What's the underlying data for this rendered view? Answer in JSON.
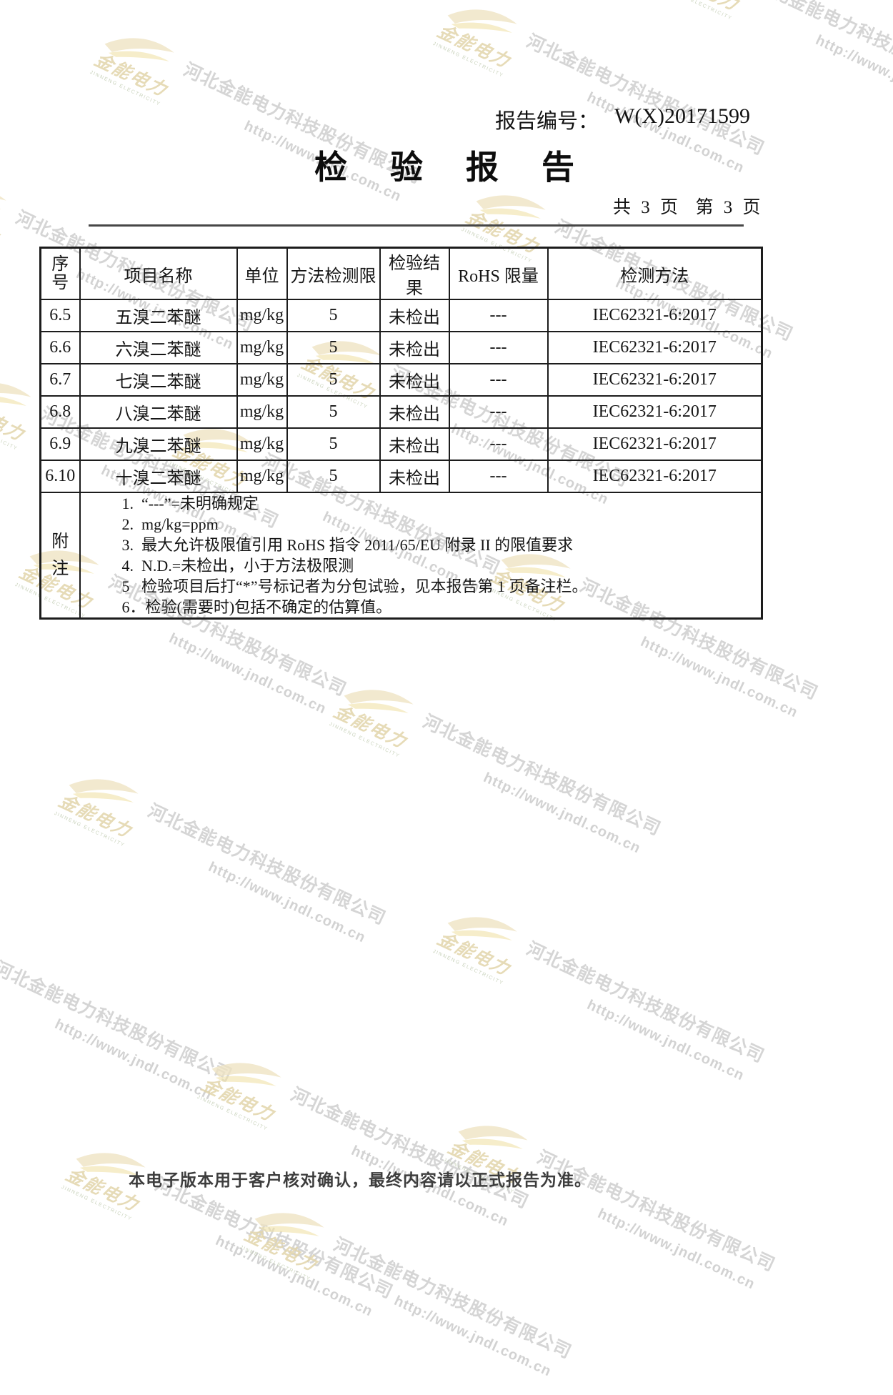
{
  "page": {
    "report_no_label": "报告编号：",
    "report_no_value": "W(X)20171599",
    "title": "检验报告",
    "page_count": "共 3 页  第 3 页",
    "footer": "本电子版本用于客户核对确认，最终内容请以正式报告为准。"
  },
  "table": {
    "headers": [
      "序号",
      "项目名称",
      "单位",
      "方法检测限",
      "检验结果",
      "RoHS 限量",
      "检测方法"
    ],
    "rows": [
      [
        "6.5",
        "五溴二苯醚",
        "mg/kg",
        "5",
        "未检出",
        "---",
        "IEC62321-6:2017"
      ],
      [
        "6.6",
        "六溴二苯醚",
        "mg/kg",
        "5",
        "未检出",
        "---",
        "IEC62321-6:2017"
      ],
      [
        "6.7",
        "七溴二苯醚",
        "mg/kg",
        "5",
        "未检出",
        "---",
        "IEC62321-6:2017"
      ],
      [
        "6.8",
        "八溴二苯醚",
        "mg/kg",
        "5",
        "未检出",
        "---",
        "IEC62321-6:2017"
      ],
      [
        "6.9",
        "九溴二苯醚",
        "mg/kg",
        "5",
        "未检出",
        "---",
        "IEC62321-6:2017"
      ],
      [
        "6.10",
        "十溴二苯醚",
        "mg/kg",
        "5",
        "未检出",
        "---",
        "IEC62321-6:2017"
      ]
    ],
    "notes_label_chars": [
      "附",
      "注"
    ],
    "notes": [
      "1.  “---”=未明确规定",
      "2.  mg/kg=ppm",
      "3.  最大允许极限值引用 RoHS 指令 2011/65/EU 附录 II 的限值要求",
      "4.  N.D.=未检出，小于方法极限测",
      "5   检验项目后打“*”号标记者为分包试验，见本报告第 1 页备注栏。",
      "6．检验(需要时)包括不确定的估算值。"
    ]
  },
  "watermark": {
    "company": "河北金能电力科技股份有限公司",
    "url": "http://www.jndl.com.cn",
    "logo_text": "金能电力",
    "logo_subtext": "JINNENG ELECTRICITY",
    "colors": {
      "watermark_text": "#9c9c9c",
      "logo_beige": "#eee3c1",
      "logo_yellow": "#f0e1a6"
    }
  }
}
